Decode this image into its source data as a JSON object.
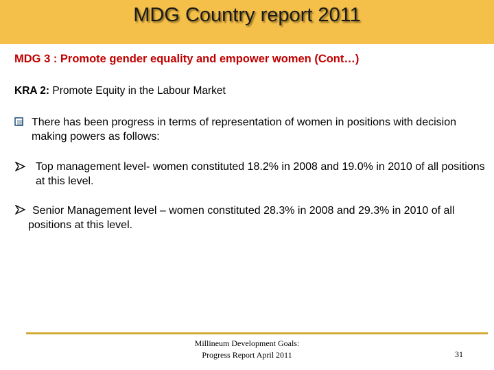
{
  "header": {
    "title": "MDG Country report 2011"
  },
  "subtitle": "MDG 3 : Promote gender equality and empower women (Cont…)",
  "kra": {
    "label": "KRA 2:",
    "text": "Promote Equity in the Labour Market"
  },
  "intro": "There has been progress in terms of representation of women in positions with decision making powers as follows:",
  "points": [
    "Top management level- women constituted 18.2% in 2008 and 19.0% in 2010 of all positions at this level.",
    "Senior Management level – women constituted 28.3% in 2008 and 29.3% in 2010 of all positions at this level."
  ],
  "footer": {
    "line1": "Millineum Development Goals:",
    "line2": "Progress Report  April 2011",
    "page": "31"
  }
}
